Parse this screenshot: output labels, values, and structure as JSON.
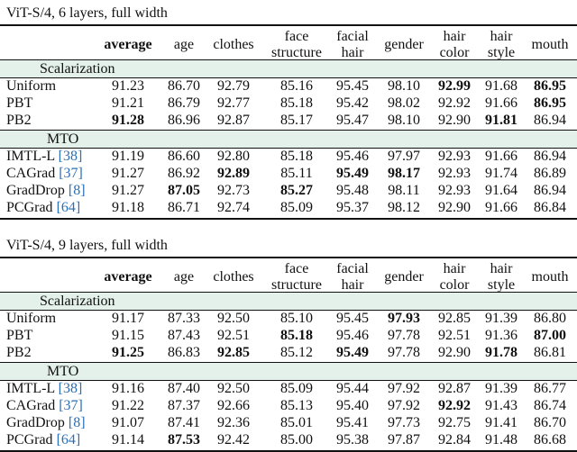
{
  "columns": [
    "average",
    "age",
    "clothes",
    "face\nstructure",
    "facial\nhair",
    "gender",
    "hair\ncolor",
    "hair\nstyle",
    "mouth"
  ],
  "panels": [
    {
      "title": "ViT-S/4, 6 layers, full width",
      "groups": [
        {
          "label": "Scalarization",
          "rows": [
            {
              "method": "Uniform",
              "cite": "",
              "values": [
                "91.23",
                "86.70",
                "92.79",
                "85.16",
                "95.45",
                "98.10",
                "92.99",
                "91.68",
                "86.95"
              ],
              "bold": [
                false,
                false,
                false,
                false,
                false,
                false,
                true,
                false,
                true
              ]
            },
            {
              "method": "PBT",
              "cite": "",
              "values": [
                "91.21",
                "86.79",
                "92.77",
                "85.18",
                "95.42",
                "98.02",
                "92.92",
                "91.66",
                "86.95"
              ],
              "bold": [
                false,
                false,
                false,
                false,
                false,
                false,
                false,
                false,
                true
              ]
            },
            {
              "method": "PB2",
              "cite": "",
              "values": [
                "91.28",
                "86.96",
                "92.87",
                "85.17",
                "95.47",
                "98.10",
                "92.90",
                "91.81",
                "86.94"
              ],
              "bold": [
                true,
                false,
                false,
                false,
                false,
                false,
                false,
                true,
                false
              ]
            }
          ]
        },
        {
          "label": "MTO",
          "rows": [
            {
              "method": "IMTL-L ",
              "cite": "[38]",
              "values": [
                "91.19",
                "86.60",
                "92.80",
                "85.18",
                "95.46",
                "97.97",
                "92.93",
                "91.66",
                "86.94"
              ],
              "bold": [
                false,
                false,
                false,
                false,
                false,
                false,
                false,
                false,
                false
              ]
            },
            {
              "method": "CAGrad ",
              "cite": "[37]",
              "values": [
                "91.27",
                "86.92",
                "92.89",
                "85.11",
                "95.49",
                "98.17",
                "92.93",
                "91.74",
                "86.89"
              ],
              "bold": [
                false,
                false,
                true,
                false,
                true,
                true,
                false,
                false,
                false
              ]
            },
            {
              "method": "GradDrop ",
              "cite": "[8]",
              "values": [
                "91.27",
                "87.05",
                "92.73",
                "85.27",
                "95.48",
                "98.11",
                "92.93",
                "91.64",
                "86.94"
              ],
              "bold": [
                false,
                true,
                false,
                true,
                false,
                false,
                false,
                false,
                false
              ]
            },
            {
              "method": "PCGrad ",
              "cite": "[64]",
              "values": [
                "91.18",
                "86.71",
                "92.74",
                "85.09",
                "95.37",
                "98.12",
                "92.90",
                "91.66",
                "86.84"
              ],
              "bold": [
                false,
                false,
                false,
                false,
                false,
                false,
                false,
                false,
                false
              ]
            }
          ]
        }
      ]
    },
    {
      "title": "ViT-S/4, 9 layers, full width",
      "groups": [
        {
          "label": "Scalarization",
          "rows": [
            {
              "method": "Uniform",
              "cite": "",
              "values": [
                "91.17",
                "87.33",
                "92.50",
                "85.10",
                "95.45",
                "97.93",
                "92.85",
                "91.39",
                "86.80"
              ],
              "bold": [
                false,
                false,
                false,
                false,
                false,
                true,
                false,
                false,
                false
              ]
            },
            {
              "method": "PBT",
              "cite": "",
              "values": [
                "91.15",
                "87.43",
                "92.51",
                "85.18",
                "95.46",
                "97.78",
                "92.51",
                "91.36",
                "87.00"
              ],
              "bold": [
                false,
                false,
                false,
                true,
                false,
                false,
                false,
                false,
                true
              ]
            },
            {
              "method": "PB2",
              "cite": "",
              "values": [
                "91.25",
                "86.83",
                "92.85",
                "85.12",
                "95.49",
                "97.78",
                "92.90",
                "91.78",
                "86.81"
              ],
              "bold": [
                true,
                false,
                true,
                false,
                true,
                false,
                false,
                true,
                false
              ]
            }
          ]
        },
        {
          "label": "MTO",
          "rows": [
            {
              "method": "IMTL-L ",
              "cite": "[38]",
              "values": [
                "91.16",
                "87.40",
                "92.50",
                "85.09",
                "95.44",
                "97.92",
                "92.87",
                "91.39",
                "86.77"
              ],
              "bold": [
                false,
                false,
                false,
                false,
                false,
                false,
                false,
                false,
                false
              ]
            },
            {
              "method": "CAGrad ",
              "cite": "[37]",
              "values": [
                "91.22",
                "87.37",
                "92.66",
                "85.13",
                "95.40",
                "97.92",
                "92.92",
                "91.43",
                "86.74"
              ],
              "bold": [
                false,
                false,
                false,
                false,
                false,
                false,
                true,
                false,
                false
              ]
            },
            {
              "method": "GradDrop ",
              "cite": "[8]",
              "values": [
                "91.07",
                "87.41",
                "92.36",
                "85.01",
                "95.41",
                "97.73",
                "92.75",
                "91.41",
                "86.70"
              ],
              "bold": [
                false,
                false,
                false,
                false,
                false,
                false,
                false,
                false,
                false
              ]
            },
            {
              "method": "PCGrad ",
              "cite": "[64]",
              "values": [
                "91.14",
                "87.53",
                "92.42",
                "85.00",
                "95.38",
                "97.87",
                "92.84",
                "91.48",
                "86.68"
              ],
              "bold": [
                false,
                true,
                false,
                false,
                false,
                false,
                false,
                false,
                false
              ]
            }
          ]
        }
      ]
    }
  ]
}
